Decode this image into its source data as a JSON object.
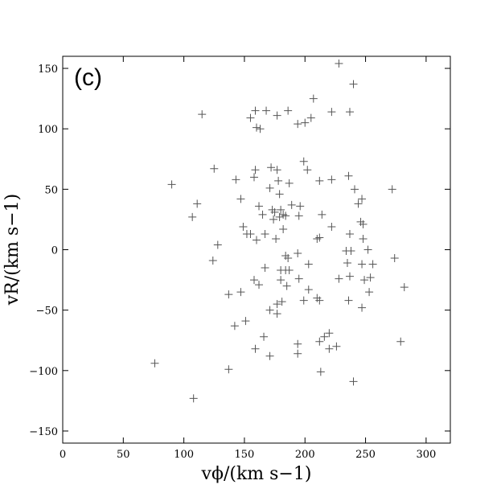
{
  "chart_data": {
    "type": "scatter",
    "annotation": "(c)",
    "x_label": "vϕ/(km s−1)",
    "y_label": "vR/(km s−1)",
    "xlim": [
      0,
      320
    ],
    "ylim": [
      -160,
      160
    ],
    "xticks": [
      0,
      50,
      100,
      150,
      200,
      250,
      300
    ],
    "yticks": [
      {
        "value": -150,
        "label": "−150"
      },
      {
        "value": -100,
        "label": "−100"
      },
      {
        "value": -50,
        "label": "−50"
      },
      0,
      50,
      100,
      150
    ],
    "grid": false,
    "color": "#555555",
    "series": [
      {
        "name": null,
        "color": "#555555",
        "x": [
          228,
          240,
          207,
          115,
          155,
          159,
          168,
          186,
          177,
          222,
          237,
          160,
          163,
          194,
          200,
          205,
          90,
          125,
          143,
          159,
          158,
          172,
          177,
          178,
          187,
          199,
          202,
          212,
          222,
          236,
          241,
          244,
          247,
          272,
          111,
          107,
          128,
          124,
          147,
          149,
          152,
          155,
          162,
          160,
          165,
          167,
          171,
          173,
          174,
          175,
          176,
          179,
          180,
          179,
          182,
          182,
          184,
          189,
          195,
          196,
          210,
          212,
          214,
          222,
          237,
          246,
          248,
          248,
          252,
          234,
          238,
          235,
          247,
          256,
          274,
          282,
          184,
          186,
          194,
          167,
          180,
          184,
          187,
          203,
          158,
          162,
          180,
          185,
          195,
          203,
          210,
          199,
          228,
          237,
          249,
          254,
          253,
          137,
          147,
          171,
          177,
          181,
          177,
          212,
          236,
          247,
          142,
          151,
          166,
          159,
          171,
          194,
          194,
          216,
          220,
          220,
          226,
          212,
          279,
          213,
          240,
          137,
          76,
          108
        ],
        "values": [
          154,
          137,
          125,
          112,
          109,
          115,
          115,
          115,
          111,
          114,
          114,
          101,
          100,
          104,
          105,
          109,
          54,
          67,
          58,
          66,
          60,
          68,
          66,
          57,
          55,
          73,
          66,
          57,
          58,
          61,
          50,
          38,
          42,
          50,
          38,
          27,
          4,
          -9,
          42,
          19,
          13,
          13,
          36,
          8,
          29,
          13,
          51,
          33,
          25,
          31,
          9,
          46,
          33,
          27,
          17,
          29,
          28,
          37,
          28,
          36,
          9,
          10,
          29,
          19,
          13,
          23,
          21,
          9,
          0,
          -1,
          -1,
          -11,
          -12,
          -12,
          -7,
          -31,
          -5,
          -7,
          -3,
          -15,
          -17,
          -17,
          -17,
          -12,
          -25,
          -29,
          -25,
          -30,
          -24,
          -33,
          -40,
          -42,
          -24,
          -22,
          -25,
          -23,
          -35,
          -37,
          -35,
          -50,
          -45,
          -43,
          -53,
          -42,
          -42,
          -48,
          -63,
          -59,
          -72,
          -82,
          -88,
          -78,
          -86,
          -72,
          -69,
          -82,
          -80,
          -76,
          -76,
          -101,
          -109,
          -99,
          -94,
          -123
        ]
      }
    ]
  }
}
